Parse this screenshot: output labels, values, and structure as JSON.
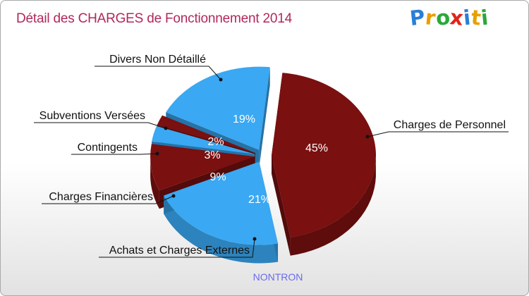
{
  "title": "Détail des CHARGES de Fonctionnement 2014",
  "logo": {
    "letters": [
      "P",
      "r",
      "o",
      "x",
      "i",
      "t",
      "i"
    ],
    "colors": [
      "#2a7fd4",
      "#e8a000",
      "#2aa83a",
      "#e2231a",
      "#2a7fd4",
      "#e8a000",
      "#2aa83a"
    ]
  },
  "location": "NONTRON",
  "colors": {
    "dark_red": "#7a1010",
    "light_blue": "#3aa8f2",
    "title": "#b0285c",
    "location": "#6a6aee"
  },
  "chart_data": {
    "type": "pie",
    "title": "Détail des CHARGES de Fonctionnement 2014",
    "units": "%",
    "legend": "none",
    "slices": [
      {
        "label": "Charges de Personnel",
        "value": 45,
        "pct_label": "45%",
        "color": "#7a1010"
      },
      {
        "label": "Achats et Charges Externes",
        "value": 21,
        "pct_label": "21%",
        "color": "#3aa8f2"
      },
      {
        "label": "Charges Financières",
        "value": 9,
        "pct_label": "9%",
        "color": "#7a1010"
      },
      {
        "label": "Contingents",
        "value": 3,
        "pct_label": "3%",
        "color": "#3aa8f2"
      },
      {
        "label": "Subventions Versées",
        "value": 2,
        "pct_label": "2%",
        "color": "#7a1010"
      },
      {
        "label": "Divers Non Détaillé",
        "value": 19,
        "pct_label": "19%",
        "color": "#3aa8f2"
      }
    ]
  }
}
